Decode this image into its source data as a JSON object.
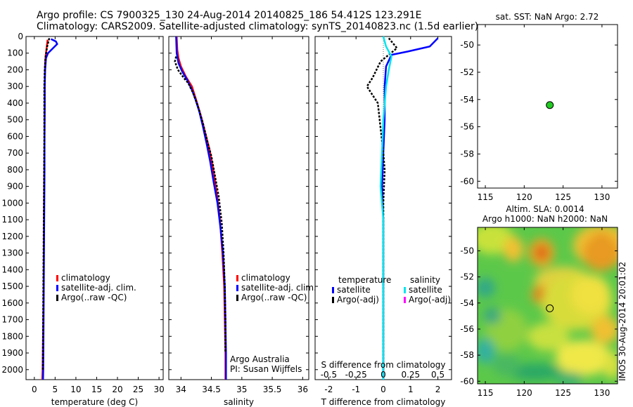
{
  "title_line1": "Argo profile: CS 7900325_130 24-Aug-2014 20140825_186 54.412S 123.291E",
  "title_line2": "Climatology: CARS2009. Satellite-adjusted climatology: synTS_20140823.nc (1.5d earlier)",
  "colors": {
    "climatology": "#ff0000",
    "satellite": "#0000ff",
    "argo": "#000000",
    "sat_s": "#00e5ee",
    "argo_s": "#ff00ff",
    "map_marker": "#22cc22"
  },
  "depth_ticks": [
    "0",
    "100",
    "200",
    "300",
    "400",
    "500",
    "600",
    "700",
    "800",
    "900",
    "1000",
    "1100",
    "1200",
    "1300",
    "1400",
    "1500",
    "1600",
    "1700",
    "1800",
    "1900",
    "2000"
  ],
  "chart_data": [
    {
      "type": "line",
      "xlabel": "temperature (deg C)",
      "xticks": [
        "0",
        "5",
        "10",
        "15",
        "20",
        "25",
        "30"
      ],
      "xlim": [
        -2,
        31
      ],
      "ylim": [
        0,
        2060
      ],
      "legend": [
        "climatology",
        "satellite-adj. clim.",
        "Argo(..raw -QC)"
      ],
      "series": [
        {
          "name": "climatology",
          "color": "#ff0000",
          "points": [
            [
              3.2,
              20
            ],
            [
              3.0,
              60
            ],
            [
              2.8,
              100
            ],
            [
              2.6,
              150
            ],
            [
              2.55,
              200
            ],
            [
              2.5,
              300
            ],
            [
              2.5,
              400
            ],
            [
              2.45,
              600
            ],
            [
              2.4,
              800
            ],
            [
              2.35,
              1000
            ],
            [
              2.3,
              1200
            ],
            [
              2.25,
              1400
            ],
            [
              2.2,
              1600
            ],
            [
              2.1,
              1800
            ],
            [
              2.0,
              2000
            ],
            [
              1.9,
              2060
            ]
          ]
        },
        {
          "name": "satellite-adj. clim.",
          "color": "#0000ff",
          "points": [
            [
              4.0,
              15
            ],
            [
              5.2,
              30
            ],
            [
              5.5,
              45
            ],
            [
              4.5,
              70
            ],
            [
              3.3,
              100
            ],
            [
              2.8,
              130
            ],
            [
              2.6,
              200
            ],
            [
              2.5,
              300
            ],
            [
              2.5,
              400
            ],
            [
              2.45,
              600
            ],
            [
              2.45,
              800
            ],
            [
              2.4,
              1000
            ],
            [
              2.35,
              1200
            ],
            [
              2.3,
              1400
            ],
            [
              2.25,
              1600
            ],
            [
              2.2,
              1800
            ],
            [
              2.15,
              2000
            ],
            [
              2.1,
              2060
            ]
          ]
        },
        {
          "name": "Argo(..raw -QC)",
          "color": "#000000",
          "points": [
            [
              3.6,
              10
            ],
            [
              3.1,
              60
            ],
            [
              2.7,
              120
            ],
            [
              2.5,
              200
            ],
            [
              2.4,
              300
            ],
            [
              2.4,
              400
            ],
            [
              2.4,
              600
            ],
            [
              2.35,
              800
            ],
            [
              2.3,
              1000
            ],
            [
              2.25,
              1200
            ],
            [
              2.2,
              1400
            ],
            [
              2.15,
              1600
            ],
            [
              2.1,
              1800
            ],
            [
              2.05,
              2000
            ]
          ]
        }
      ]
    },
    {
      "type": "line",
      "xlabel": "salinity",
      "xticks": [
        "34",
        "34.5",
        "35",
        "35.5",
        "36"
      ],
      "xlim": [
        33.8,
        36.1
      ],
      "ylim": [
        0,
        2060
      ],
      "legend": [
        "climatology",
        "satellite-adj. clim.",
        "Argo(..raw -QC)"
      ],
      "annotation": [
        "Argo Australia",
        "PI: Susan Wijffels"
      ],
      "series": [
        {
          "name": "climatology",
          "color": "#ff0000",
          "points": [
            [
              33.93,
              0
            ],
            [
              33.94,
              80
            ],
            [
              33.96,
              130
            ],
            [
              34.0,
              180
            ],
            [
              34.08,
              240
            ],
            [
              34.18,
              300
            ],
            [
              34.25,
              380
            ],
            [
              34.33,
              480
            ],
            [
              34.4,
              580
            ],
            [
              34.47,
              680
            ],
            [
              34.53,
              800
            ],
            [
              34.59,
              950
            ],
            [
              34.64,
              1100
            ],
            [
              34.68,
              1300
            ],
            [
              34.71,
              1500
            ],
            [
              34.72,
              1700
            ],
            [
              34.73,
              1900
            ],
            [
              34.73,
              2060
            ]
          ]
        },
        {
          "name": "satellite-adj. clim.",
          "color": "#0000ff",
          "points": [
            [
              33.92,
              0
            ],
            [
              33.93,
              100
            ],
            [
              33.96,
              160
            ],
            [
              34.02,
              210
            ],
            [
              34.1,
              260
            ],
            [
              34.18,
              320
            ],
            [
              34.24,
              380
            ],
            [
              34.3,
              450
            ],
            [
              34.36,
              540
            ],
            [
              34.42,
              640
            ],
            [
              34.48,
              750
            ],
            [
              34.54,
              880
            ],
            [
              34.6,
              1000
            ],
            [
              34.65,
              1150
            ],
            [
              34.69,
              1300
            ],
            [
              34.72,
              1500
            ],
            [
              34.73,
              1700
            ],
            [
              34.74,
              1900
            ],
            [
              34.74,
              2060
            ]
          ]
        },
        {
          "name": "Argo(..raw -QC)",
          "color": "#000000",
          "points": [
            [
              33.92,
              120
            ],
            [
              33.9,
              150
            ],
            [
              33.95,
              200
            ],
            [
              34.05,
              250
            ],
            [
              34.12,
              280
            ],
            [
              34.2,
              340
            ],
            [
              34.28,
              420
            ],
            [
              34.36,
              520
            ],
            [
              34.44,
              640
            ],
            [
              34.5,
              720
            ],
            [
              34.56,
              840
            ],
            [
              34.62,
              960
            ],
            [
              34.67,
              1120
            ],
            [
              34.7,
              1300
            ],
            [
              34.72,
              1500
            ],
            [
              34.73,
              1700
            ],
            [
              34.73,
              1900
            ]
          ]
        }
      ]
    },
    {
      "type": "line",
      "xlabel": "T difference from climatology",
      "xticks": [
        "-2",
        "-1",
        "0",
        "1",
        "2"
      ],
      "xlim": [
        -2.5,
        2.5
      ],
      "ylim": [
        0,
        2060
      ],
      "top_label": "S difference from climatology",
      "top_ticks": [
        "-0.5",
        "-0.25",
        "0",
        "0.25",
        "0.5"
      ],
      "legend_t_title": "temperature",
      "legend_s_title": "salinity",
      "legend": [
        "satellite",
        "Argo(-adj)",
        "satellite",
        "Argo(-adj)"
      ],
      "series": [
        {
          "name": "satellite",
          "color": "#0000ff",
          "points": [
            [
              2.0,
              10
            ],
            [
              1.7,
              60
            ],
            [
              0.9,
              90
            ],
            [
              0.3,
              110
            ],
            [
              0.1,
              180
            ],
            [
              0.05,
              300
            ],
            [
              0.05,
              500
            ],
            [
              0.0,
              700
            ],
            [
              -0.05,
              900
            ],
            [
              0.0,
              1100
            ],
            [
              0.0,
              1500
            ],
            [
              0.0,
              2000
            ],
            [
              0.0,
              2060
            ]
          ]
        },
        {
          "name": "Argo(-adj)",
          "color": "#000000",
          "points": [
            [
              0.2,
              10
            ],
            [
              0.5,
              70
            ],
            [
              -0.1,
              150
            ],
            [
              -0.4,
              250
            ],
            [
              -0.6,
              300
            ],
            [
              -0.2,
              400
            ],
            [
              -0.1,
              550
            ],
            [
              0.0,
              700
            ],
            [
              0.05,
              800
            ],
            [
              0.0,
              1000
            ],
            [
              0.0,
              1300
            ],
            [
              0.0,
              1600
            ],
            [
              0.0,
              2000
            ]
          ]
        },
        {
          "name": "satellite",
          "color": "#00e5ee",
          "points": [
            [
              0.0,
              0
            ],
            [
              0.1,
              60
            ],
            [
              0.3,
              120
            ],
            [
              0.2,
              200
            ],
            [
              0.1,
              300
            ],
            [
              0.0,
              500
            ],
            [
              -0.05,
              700
            ],
            [
              -0.1,
              900
            ],
            [
              0.0,
              1100
            ],
            [
              0.0,
              1500
            ],
            [
              0.0,
              2000
            ],
            [
              0.0,
              2060
            ]
          ]
        }
      ]
    },
    {
      "type": "scatter",
      "title": "sat. SST: NaN Argo: 2.72",
      "xticks": [
        "115",
        "120",
        "125",
        "130"
      ],
      "yticks": [
        "-50",
        "-52",
        "-54",
        "-56",
        "-58",
        "-60"
      ],
      "xlim": [
        114,
        132
      ],
      "ylim": [
        -60.5,
        -48.5
      ],
      "points": [
        [
          123.29,
          -54.41
        ]
      ]
    },
    {
      "type": "heatmap",
      "title_line1": "Altim. SLA: 0.0014",
      "title_line2": "Argo h1000: NaN h2000: NaN",
      "xticks": [
        "115",
        "120",
        "125",
        "130"
      ],
      "yticks": [
        "-50",
        "-52",
        "-54",
        "-56",
        "-58",
        "-60"
      ],
      "xlim": [
        114,
        132
      ],
      "ylim": [
        -60.2,
        -48.2
      ],
      "side_label": "IMOS 30-Aug-2014 20:01:02",
      "points": [
        [
          123.29,
          -54.41
        ]
      ]
    }
  ]
}
